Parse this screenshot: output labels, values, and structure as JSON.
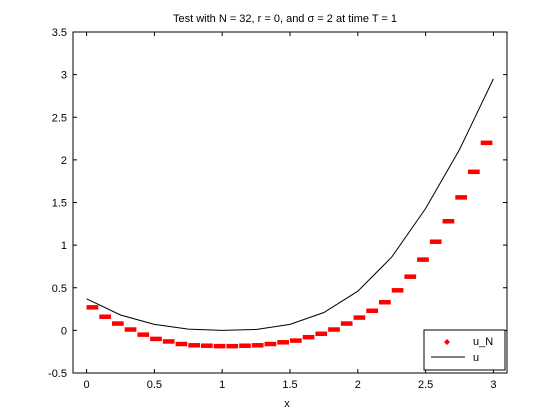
{
  "chart_data": {
    "type": "scatter",
    "title": "Test with N = 32, r = 0, and σ = 2 at time T = 1",
    "xlabel": "x",
    "ylabel": "",
    "xlim": [
      -0.1,
      3.1
    ],
    "ylim": [
      -0.5,
      3.5
    ],
    "x_ticks": [
      "0",
      "0.5",
      "1",
      "1.5",
      "2",
      "2.5",
      "3"
    ],
    "y_ticks": [
      "-0.5",
      "0",
      "0.5",
      "1",
      "1.5",
      "2",
      "2.5",
      "3",
      "3.5"
    ],
    "grid": false,
    "legend_position": "bottom-right",
    "series": [
      {
        "name": "u_N",
        "style": "markers",
        "color": "#ff0000",
        "x": [
          0.0,
          0.09375,
          0.1875,
          0.28125,
          0.375,
          0.46875,
          0.5625,
          0.65625,
          0.75,
          0.84375,
          0.9375,
          1.03125,
          1.125,
          1.21875,
          1.3125,
          1.40625,
          1.5,
          1.59375,
          1.6875,
          1.78125,
          1.875,
          1.96875,
          2.0625,
          2.15625,
          2.25,
          2.34375,
          2.4375,
          2.53125,
          2.625,
          2.71875,
          2.8125,
          2.90625
        ],
        "y": [
          0.27,
          0.16,
          0.08,
          0.01,
          -0.05,
          -0.1,
          -0.13,
          -0.16,
          -0.175,
          -0.18,
          -0.185,
          -0.185,
          -0.18,
          -0.175,
          -0.16,
          -0.14,
          -0.12,
          -0.08,
          -0.04,
          0.01,
          0.08,
          0.15,
          0.23,
          0.33,
          0.47,
          0.63,
          0.83,
          1.04,
          1.28,
          1.56,
          1.86,
          2.2
        ]
      },
      {
        "name": "u",
        "style": "line",
        "color": "#000000",
        "x": [
          0.0,
          0.25,
          0.5,
          0.75,
          1.0,
          1.25,
          1.5,
          1.75,
          2.0,
          2.25,
          2.5,
          2.75,
          3.0
        ],
        "y": [
          0.37,
          0.18,
          0.07,
          0.015,
          0.0,
          0.01,
          0.07,
          0.21,
          0.46,
          0.86,
          1.43,
          2.12,
          2.95
        ]
      }
    ]
  }
}
